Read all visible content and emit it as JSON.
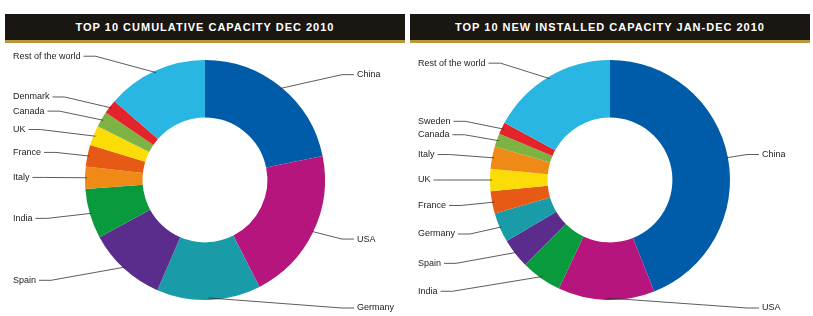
{
  "chart_data": [
    {
      "type": "doughnut",
      "title": "TOP 10 CUMULATIVE CAPACITY DEC 2010",
      "categories": [
        "China",
        "USA",
        "Germany",
        "Spain",
        "India",
        "Italy",
        "France",
        "UK",
        "Canada",
        "Denmark",
        "Rest of the world"
      ],
      "values": [
        21.8,
        20.7,
        14.0,
        10.6,
        6.7,
        3.0,
        2.9,
        2.7,
        2.1,
        1.9,
        13.6
      ],
      "colors": [
        "#005ca8",
        "#b5157d",
        "#1a9ba8",
        "#5a2d8c",
        "#0a9a3e",
        "#ef8a17",
        "#e75a16",
        "#fbdc06",
        "#7cb342",
        "#e3242b",
        "#29b6e3"
      ]
    },
    {
      "type": "doughnut",
      "title": "TOP 10 NEW INSTALLED CAPACITY JAN-DEC 2010",
      "categories": [
        "China",
        "USA",
        "India",
        "Spain",
        "Germany",
        "France",
        "UK",
        "Italy",
        "Canada",
        "Sweden",
        "Rest of the world"
      ],
      "values": [
        44.0,
        13.0,
        5.5,
        4.0,
        4.0,
        3.0,
        3.0,
        3.0,
        1.8,
        1.6,
        17.1
      ],
      "colors": [
        "#005ca8",
        "#b5157d",
        "#0a9a3e",
        "#5a2d8c",
        "#1a9ba8",
        "#e75a16",
        "#fbdc06",
        "#ef8a17",
        "#7cb342",
        "#e3242b",
        "#29b6e3"
      ]
    }
  ]
}
